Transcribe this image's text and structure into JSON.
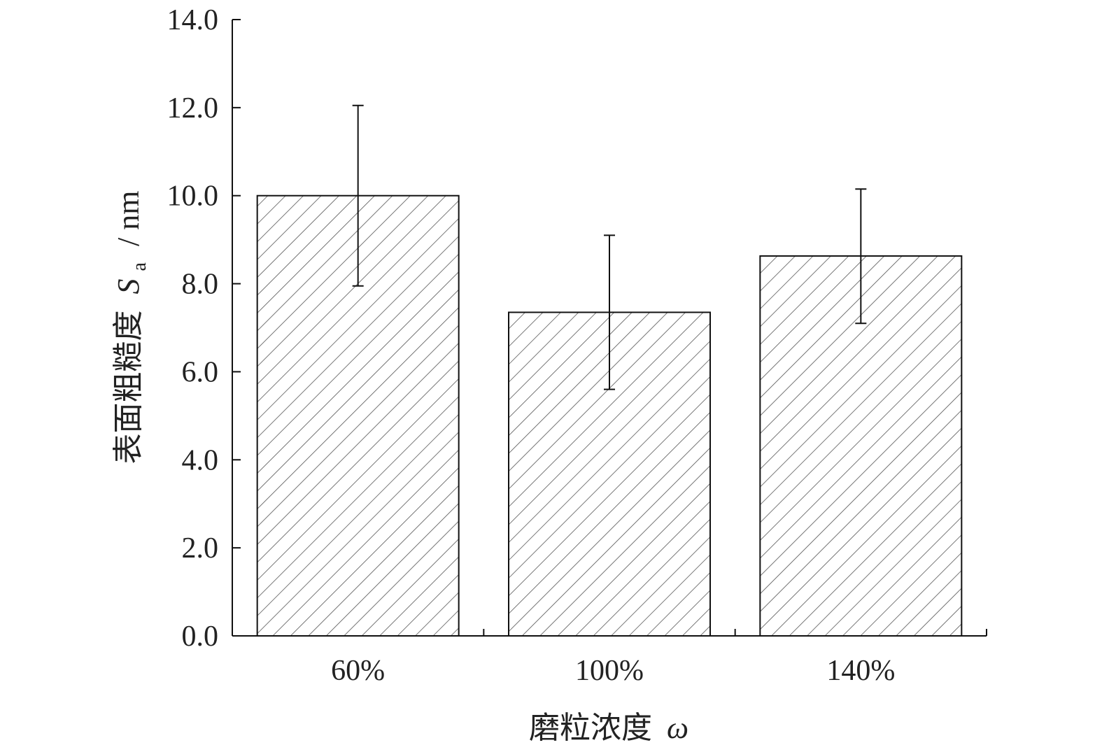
{
  "chart_data": {
    "type": "bar",
    "categories": [
      "60%",
      "100%",
      "140%"
    ],
    "values": [
      10.0,
      7.35,
      8.63
    ],
    "error_bars": {
      "upper": [
        12.05,
        9.1,
        10.15
      ],
      "lower": [
        7.95,
        5.6,
        7.1
      ]
    },
    "xlabel": {
      "text": "磨粒浓度",
      "symbol": "ω"
    },
    "ylabel": {
      "text": "表面粗糙度",
      "symbol": "S",
      "subscript": "a",
      "unit": "/ nm"
    },
    "ylim": [
      0,
      14
    ],
    "yticks": [
      "0.0",
      "2.0",
      "4.0",
      "6.0",
      "8.0",
      "10.0",
      "12.0",
      "14.0"
    ],
    "grid": false,
    "bar_fill": "hatched"
  }
}
